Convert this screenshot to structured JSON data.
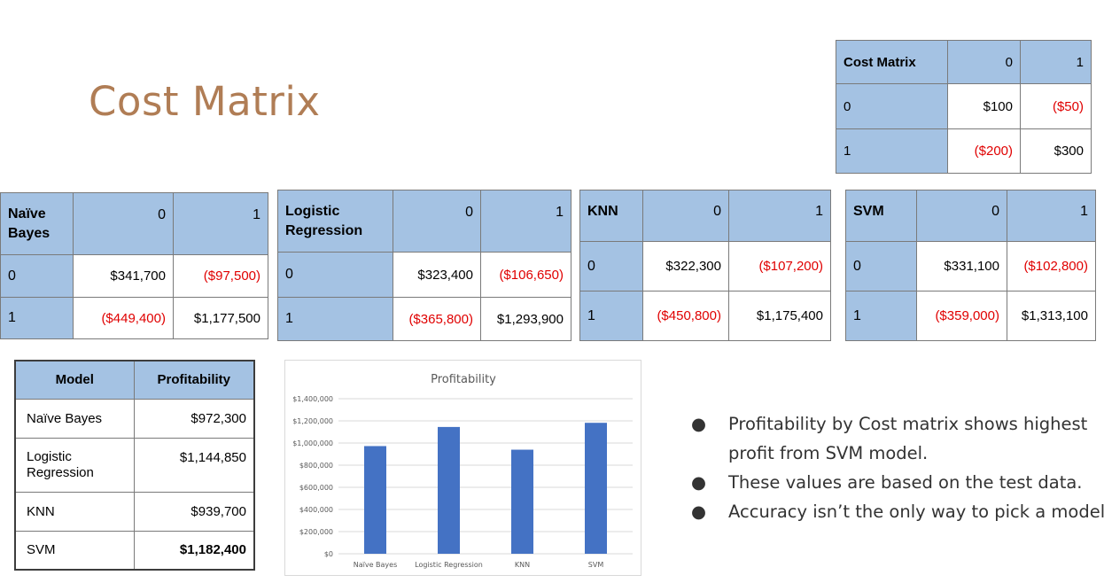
{
  "slide_title": "Cost Matrix",
  "cost_matrix": {
    "header": [
      "Cost Matrix",
      "0",
      "1"
    ],
    "rows": [
      [
        "0",
        "$100",
        "($50)"
      ],
      [
        "1",
        "($200)",
        "$300"
      ]
    ]
  },
  "models": [
    {
      "name": "Naïve Bayes",
      "header": [
        "Naïve Bayes",
        "0",
        "1"
      ],
      "rows": [
        [
          "0",
          "$341,700",
          "($97,500)"
        ],
        [
          "1",
          "($449,400)",
          "$1,177,500"
        ]
      ]
    },
    {
      "name": "Logistic Regression",
      "header": [
        "Logistic Regression",
        "0",
        "1"
      ],
      "rows": [
        [
          "0",
          "$323,400",
          "($106,650)"
        ],
        [
          "1",
          "($365,800)",
          "$1,293,900"
        ]
      ]
    },
    {
      "name": "KNN",
      "header": [
        "KNN",
        "0",
        "1"
      ],
      "rows": [
        [
          "0",
          "$322,300",
          "($107,200)"
        ],
        [
          "1",
          "($450,800)",
          "$1,175,400"
        ]
      ]
    },
    {
      "name": "SVM",
      "header": [
        "SVM",
        "0",
        "1"
      ],
      "rows": [
        [
          "0",
          "$331,100",
          "($102,800)"
        ],
        [
          "1",
          "($359,000)",
          "$1,313,100"
        ]
      ]
    }
  ],
  "profit_table": {
    "header": [
      "Model",
      "Profitability"
    ],
    "rows": [
      [
        "Naïve Bayes",
        "$972,300"
      ],
      [
        "Logistic Regression",
        "$1,144,850"
      ],
      [
        "KNN",
        "$939,700"
      ],
      [
        "SVM",
        "$1,182,400"
      ]
    ]
  },
  "chart_data": {
    "type": "bar",
    "title": "Profitability",
    "categories": [
      "Naïve Bayes",
      "Logistic Regression",
      "KNN",
      "SVM"
    ],
    "values": [
      972300,
      1144850,
      939700,
      1182400
    ],
    "ylim": [
      0,
      1400000
    ],
    "yticks": [
      "$0",
      "$200,000",
      "$400,000",
      "$600,000",
      "$800,000",
      "$1,000,000",
      "$1,200,000",
      "$1,400,000"
    ],
    "xlabel": "",
    "ylabel": "",
    "bar_color": "#4472c4",
    "grid": true
  },
  "bullets": {
    "symbol": "●",
    "items": [
      "Profitability by Cost matrix shows highest profit from SVM model.",
      "These values are based on the test data.",
      "Accuracy isn’t the only way to pick a model"
    ]
  }
}
